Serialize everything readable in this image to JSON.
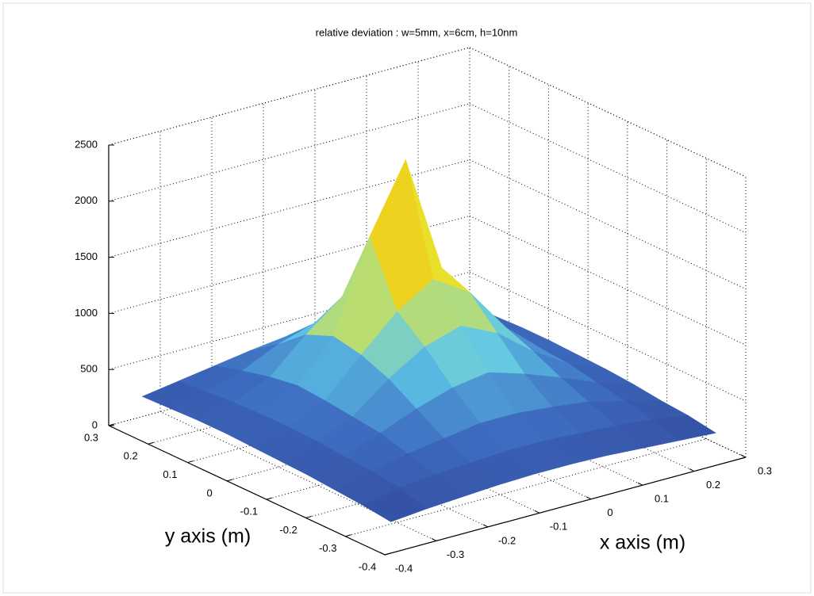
{
  "chart_data": {
    "type": "surface",
    "title": "relative deviation : w=5mm, x=6cm, h=10nm",
    "xlabel": "x axis (m)",
    "ylabel": "y axis (m)",
    "xlim": [
      -0.4,
      0.3
    ],
    "ylim": [
      -0.4,
      0.3
    ],
    "zlim": [
      0,
      2500
    ],
    "xticks": [
      -0.4,
      -0.3,
      -0.2,
      -0.1,
      0,
      0.1,
      0.2,
      0.3
    ],
    "yticks": [
      -0.4,
      -0.3,
      -0.2,
      -0.1,
      0,
      0.1,
      0.2,
      0.3
    ],
    "zticks": [
      0,
      500,
      1000,
      1500,
      2000,
      2500
    ],
    "grid": true,
    "colormap": "jet",
    "clim": [
      0,
      2300
    ],
    "x": [
      -0.35,
      -0.28,
      -0.21,
      -0.14,
      -0.07,
      0,
      0.07,
      0.14,
      0.21,
      0.28
    ],
    "y": [
      -0.35,
      -0.28,
      -0.21,
      -0.14,
      -0.07,
      0,
      0.07,
      0.14,
      0.21,
      0.28
    ],
    "z": [
      [
        150,
        180,
        200,
        220,
        230,
        230,
        220,
        200,
        180,
        160
      ],
      [
        180,
        250,
        280,
        300,
        320,
        320,
        300,
        280,
        250,
        200
      ],
      [
        200,
        280,
        350,
        400,
        450,
        450,
        420,
        380,
        300,
        220
      ],
      [
        220,
        300,
        420,
        550,
        650,
        700,
        600,
        480,
        350,
        250
      ],
      [
        230,
        320,
        450,
        700,
        900,
        1000,
        850,
        600,
        400,
        270
      ],
      [
        240,
        330,
        480,
        800,
        1100,
        1300,
        1100,
        700,
        420,
        280
      ],
      [
        250,
        330,
        500,
        850,
        1650,
        2250,
        1200,
        750,
        430,
        290
      ],
      [
        250,
        320,
        460,
        750,
        1000,
        1100,
        900,
        650,
        400,
        290
      ],
      [
        240,
        300,
        400,
        550,
        650,
        700,
        600,
        480,
        360,
        280
      ],
      [
        230,
        280,
        330,
        380,
        420,
        430,
        400,
        360,
        300,
        260
      ]
    ]
  }
}
